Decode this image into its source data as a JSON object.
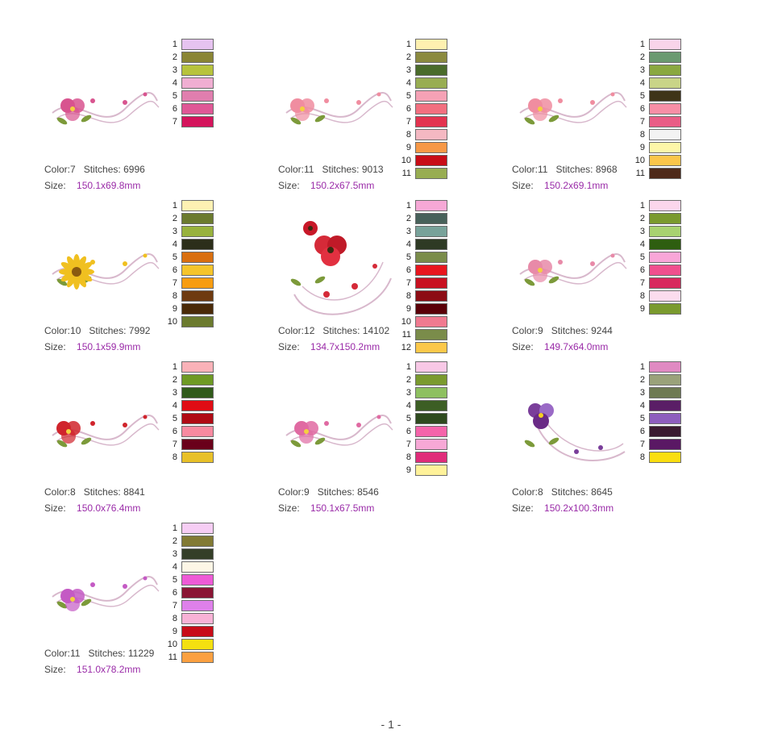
{
  "page_number": "- 1 -",
  "labels": {
    "color": "Color:",
    "stitches": "Stitches:",
    "size": "Size:"
  },
  "designs": [
    {
      "color_count": "7",
      "stitches": "6996",
      "size": "150.1x69.8mm",
      "motif": "rose",
      "accent": "#d8548f",
      "colors": [
        "#e6c3f0",
        "#8a8534",
        "#b7c33c",
        "#f0aed2",
        "#e07eae",
        "#df5896",
        "#d4145c"
      ]
    },
    {
      "color_count": "11",
      "stitches": "9013",
      "size": "150.2x67.5mm",
      "motif": "lily",
      "accent": "#f08da0",
      "colors": [
        "#fef0b0",
        "#8b8a3f",
        "#4a6b2b",
        "#98ad52",
        "#f5a1b5",
        "#f26f7f",
        "#e3334f",
        "#f4b8c2",
        "#f79846",
        "#c80d17",
        "#98ad52"
      ]
    },
    {
      "color_count": "11",
      "stitches": "8968",
      "size": "150.2x69.1mm",
      "motif": "rosebud",
      "accent": "#f08da0",
      "colors": [
        "#f9d4ea",
        "#6a9a70",
        "#8aa840",
        "#c9d487",
        "#3e3418",
        "#f78ea6",
        "#e95d86",
        "#f3f3f3",
        "#fdf6a8",
        "#fbc64a",
        "#4e2a1a"
      ]
    },
    {
      "color_count": "10",
      "stitches": "7992",
      "size": "150.1x59.9mm",
      "motif": "sunflower",
      "accent": "#f0c020",
      "colors": [
        "#fef1b3",
        "#6b7a2e",
        "#98b23d",
        "#2c2e1a",
        "#d96f10",
        "#f5c42a",
        "#f79c10",
        "#6e3a10",
        "#4a2a08",
        "#6b7a2e"
      ]
    },
    {
      "color_count": "12",
      "stitches": "14102",
      "size": "134.7x150.2mm",
      "motif": "poppy",
      "accent": "#d52a38",
      "colors": [
        "#f6a8d6",
        "#47615a",
        "#78a29a",
        "#2e3a24",
        "#7a8c4a",
        "#e8161e",
        "#c81020",
        "#8c0c14",
        "#5a0008",
        "#f07a90",
        "#7a8c4a",
        "#fcc84a"
      ]
    },
    {
      "color_count": "9",
      "stitches": "9244",
      "size": "149.7x64.0mm",
      "motif": "rose",
      "accent": "#e88aa8",
      "colors": [
        "#fbd6ec",
        "#7a9a2e",
        "#a8d270",
        "#2e5e10",
        "#f9a6d8",
        "#f04f8e",
        "#d8285e",
        "#fbdcee",
        "#7a9a2e"
      ]
    },
    {
      "color_count": "8",
      "stitches": "8841",
      "size": "150.0x76.4mm",
      "motif": "lily",
      "accent": "#d0242c",
      "colors": [
        "#fab2b8",
        "#6e9a24",
        "#305a1a",
        "#e00c14",
        "#b00a14",
        "#f88aa0",
        "#6a001a",
        "#e8c028"
      ]
    },
    {
      "color_count": "9",
      "stitches": "8546",
      "size": "150.1x67.5mm",
      "motif": "rose",
      "accent": "#e06aa2",
      "colors": [
        "#f8c8e6",
        "#7a9a2e",
        "#8ec060",
        "#3c5e24",
        "#2e4a1e",
        "#f564aa",
        "#f7a8d6",
        "#e02c7a",
        "#fff29a"
      ]
    },
    {
      "color_count": "8",
      "stitches": "8645",
      "size": "150.2x100.3mm",
      "motif": "pansy",
      "accent": "#7a3e9a",
      "colors": [
        "#e08ac2",
        "#9aa27a",
        "#6e7a52",
        "#5a1e66",
        "#8e5ebe",
        "#3a1a30",
        "#5a1864",
        "#fade10"
      ]
    },
    {
      "color_count": "11",
      "stitches": "11229",
      "size": "151.0x78.2mm",
      "motif": "orchid",
      "accent": "#c45ac4",
      "colors": [
        "#f6cdf4",
        "#827a34",
        "#343e28",
        "#fdf6e6",
        "#ee5ad6",
        "#8a1434",
        "#de80ea",
        "#f8b2d6",
        "#c80c18",
        "#f4e010",
        "#fba040"
      ]
    }
  ]
}
